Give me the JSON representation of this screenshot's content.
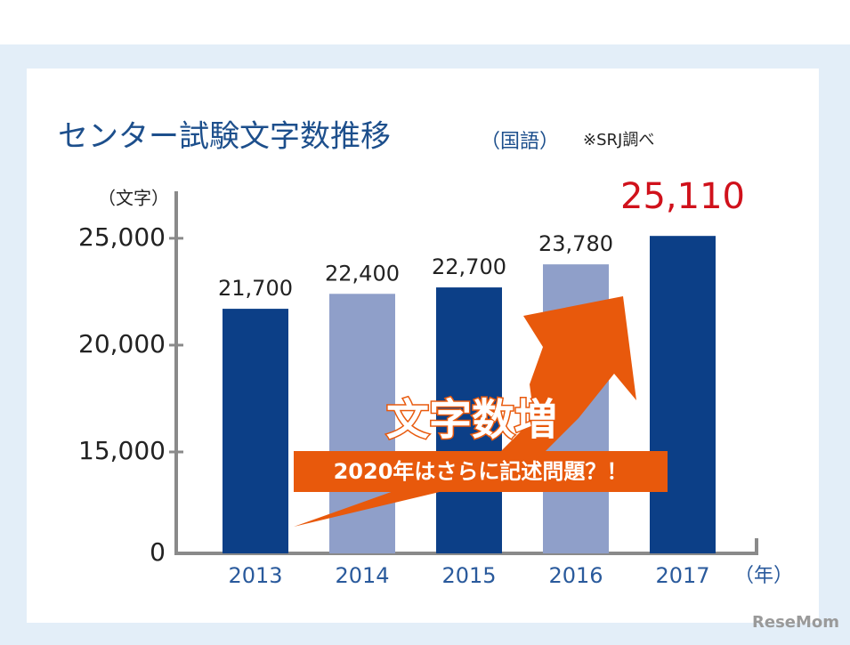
{
  "chart_data": {
    "type": "bar",
    "title": "センター試験文字数推移",
    "subtitle": "（国語）",
    "note": "※SRJ調べ",
    "y_label": "（文字）",
    "x_label": "（年）",
    "categories": [
      "2013",
      "2014",
      "2015",
      "2016",
      "2017"
    ],
    "values": [
      21700,
      22400,
      22700,
      23780,
      25110
    ],
    "value_labels": [
      "21,700",
      "22,400",
      "22,700",
      "23,780",
      "25,110"
    ],
    "colors": [
      "#0c3f87",
      "#8f9fc9",
      "#0c3f87",
      "#8f9fc9",
      "#0c3f87"
    ],
    "value_label_colors": [
      "#222222",
      "#222222",
      "#222222",
      "#222222",
      "#d0111b"
    ],
    "ylim": [
      0,
      27200
    ],
    "yticks": [
      0,
      {
        "value": 15000,
        "label": "15,000"
      },
      {
        "value": 20000,
        "label": "20,000"
      },
      {
        "value": 25000,
        "label": "25,000"
      }
    ],
    "axis_break": true,
    "annotation": "文字数増",
    "annotation_sub": "2020年はさらに記述問題？！",
    "watermark": "ReseMom"
  }
}
